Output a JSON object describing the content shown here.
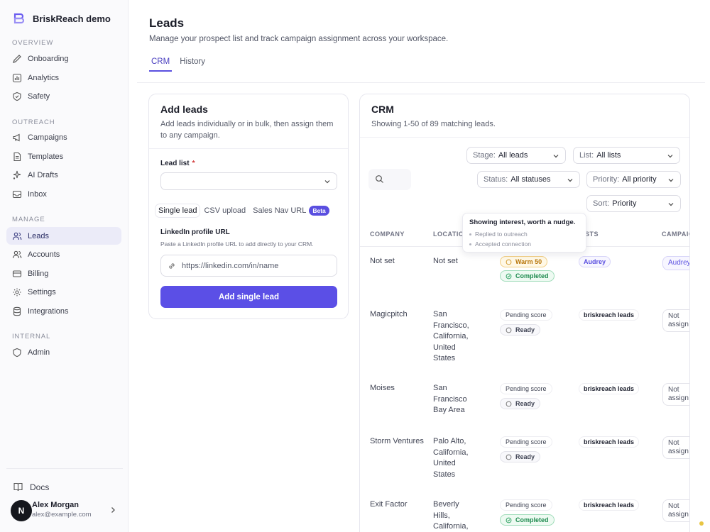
{
  "sidebar": {
    "brand": "BriskReach demo",
    "sections": {
      "overview": "OVERVIEW",
      "outreach": "OUTREACH",
      "manage": "MANAGE",
      "internal": "INTERNAL"
    },
    "items": {
      "onboarding": "Onboarding",
      "analytics": "Analytics",
      "safety": "Safety",
      "campaigns": "Campaigns",
      "templates": "Templates",
      "ai_drafts": "AI Drafts",
      "inbox": "Inbox",
      "leads": "Leads",
      "accounts": "Accounts",
      "billing": "Billing",
      "settings": "Settings",
      "integrations": "Integrations",
      "admin": "Admin"
    },
    "docs": "Docs",
    "user": {
      "initial": "N",
      "name": "Alex Morgan",
      "email": "alex@example.com"
    }
  },
  "header": {
    "title": "Leads",
    "subtitle": "Manage your prospect list and track campaign assignment across your workspace.",
    "tabs": [
      "CRM",
      "History"
    ]
  },
  "add_leads": {
    "title": "Add leads",
    "subtitle": "Add leads individually or in bulk, then assign them to any campaign.",
    "lead_list_label": "Lead list",
    "required_mark": "*",
    "modes": [
      "Single lead",
      "CSV upload",
      "Sales Nav URL"
    ],
    "beta": "Beta",
    "linkedin_label": "LinkedIn profile URL",
    "linkedin_hint": "Paste a LinkedIn profile URL to add directly to your CRM.",
    "linkedin_placeholder": "https://linkedin.com/in/name",
    "submit": "Add single lead"
  },
  "crm": {
    "title": "CRM",
    "subtitle": "Showing 1-50 of 89 matching leads.",
    "filters": {
      "stage": {
        "label": "Stage:",
        "value": "All leads"
      },
      "list": {
        "label": "List:",
        "value": "All lists"
      },
      "status": {
        "label": "Status:",
        "value": "All statuses"
      },
      "priority": {
        "label": "Priority:",
        "value": "All priority"
      },
      "sort": {
        "label": "Sort:",
        "value": "Priority"
      }
    },
    "columns": [
      "COMPANY",
      "LOCATION",
      "LISTS",
      "CAMPAIG"
    ],
    "tooltip": {
      "title": "Showing interest, worth a nudge.",
      "items": [
        "Replied to outreach",
        "Accepted connection"
      ]
    },
    "rows": [
      {
        "company": "Not set",
        "location": "Not set",
        "score": "Warm 50",
        "status": "Completed",
        "list": "Audrey",
        "campaign": "Audrey"
      },
      {
        "company": "Magicpitch",
        "location": "San Francisco, California, United States",
        "score": "Pending score",
        "status": "Ready",
        "list": "briskreach leads",
        "campaign": "Not assign"
      },
      {
        "company": "Moises",
        "location": "San Francisco Bay Area",
        "score": "Pending score",
        "status": "Ready",
        "list": "briskreach leads",
        "campaign": "Not assign"
      },
      {
        "company": "Storm Ventures",
        "location": "Palo Alto, California, United States",
        "score": "Pending score",
        "status": "Ready",
        "list": "briskreach leads",
        "campaign": "Not assign"
      },
      {
        "company": "Exit Factor",
        "location": "Beverly Hills, California,",
        "score": "Pending score",
        "status": "Completed",
        "list": "briskreach leads",
        "campaign": "Not assign"
      }
    ]
  },
  "colors": {
    "accent": "#5b4fe6",
    "completed": "#1d8a4e",
    "warm": "#b8760a"
  }
}
